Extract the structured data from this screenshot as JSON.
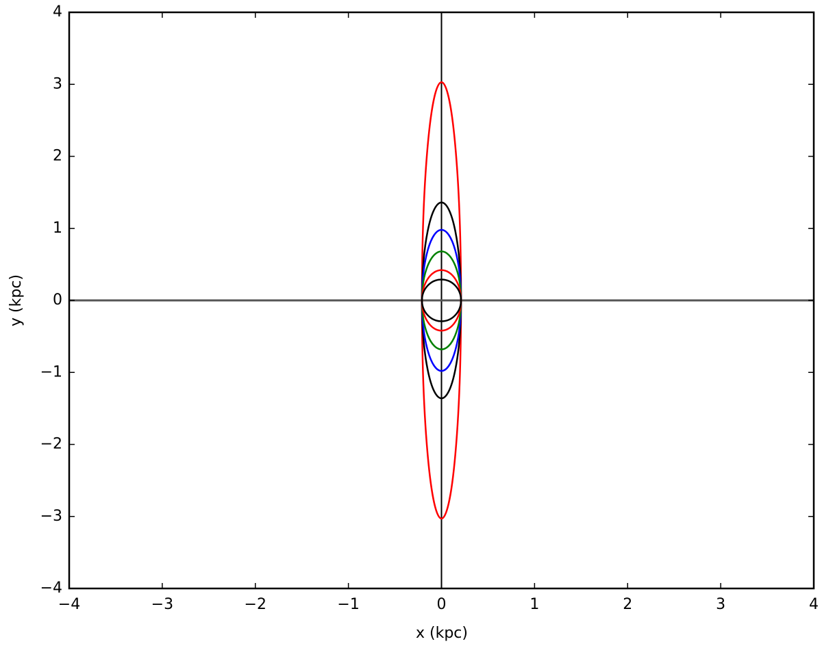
{
  "chart_data": {
    "type": "ellipse",
    "xlabel": "x (kpc)",
    "ylabel": "y (kpc)",
    "xlim": [
      -4,
      4
    ],
    "ylim": [
      -4,
      4
    ],
    "xticks": [
      {
        "value": -4,
        "label": "−4"
      },
      {
        "value": -3,
        "label": "−3"
      },
      {
        "value": -2,
        "label": "−2"
      },
      {
        "value": -1,
        "label": "−1"
      },
      0,
      1,
      2,
      3,
      4
    ],
    "yticks": [
      {
        "value": -4,
        "label": "−4"
      },
      {
        "value": -3,
        "label": "−3"
      },
      {
        "value": -2,
        "label": "−2"
      },
      {
        "value": -1,
        "label": "−1"
      },
      0,
      1,
      2,
      3,
      4
    ],
    "axhline": 0,
    "axvline": 0,
    "series": [
      {
        "color": "#ff0000",
        "semi_x": 0.21,
        "semi_y": 3.03
      },
      {
        "color": "#000000",
        "semi_x": 0.21,
        "semi_y": 1.36
      },
      {
        "color": "#0000ff",
        "semi_x": 0.21,
        "semi_y": 0.98
      },
      {
        "color": "#008000",
        "semi_x": 0.21,
        "semi_y": 0.68
      },
      {
        "color": "#ff0000",
        "semi_x": 0.21,
        "semi_y": 0.42
      },
      {
        "color": "#000000",
        "semi_x": 0.21,
        "semi_y": 0.29
      }
    ]
  }
}
